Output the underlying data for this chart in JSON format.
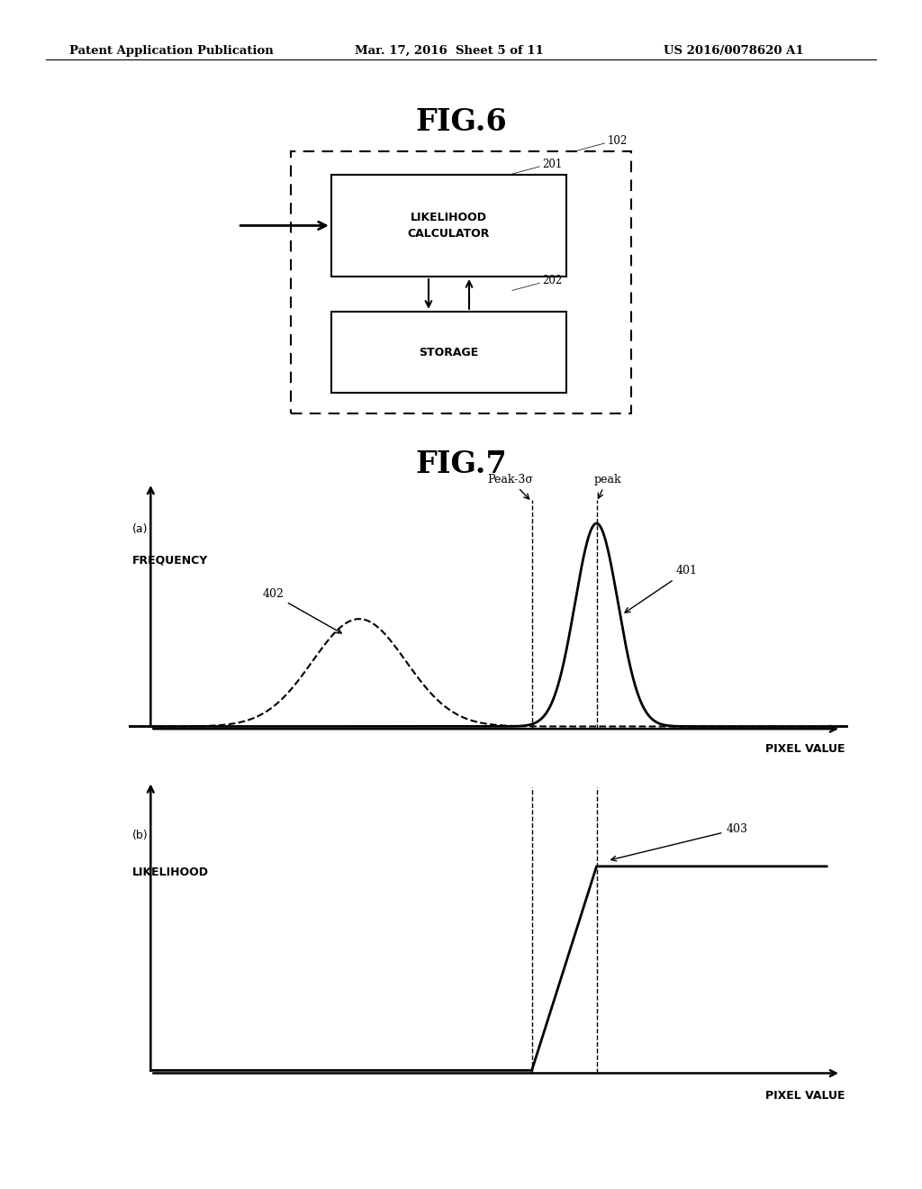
{
  "header_left": "Patent Application Publication",
  "header_mid": "Mar. 17, 2016  Sheet 5 of 11",
  "header_right": "US 2016/0078620 A1",
  "fig6_title": "FIG.6",
  "fig7_title": "FIG.7",
  "fig6_box1_text": "LIKELIHOOD\nCALCULATOR",
  "fig6_box2_text": "STORAGE",
  "fig7a_ylabel_line1": "(a)",
  "fig7a_ylabel_line2": "FREQUENCY",
  "fig7a_xlabel": "PIXEL VALUE",
  "fig7b_ylabel_line1": "(b)",
  "fig7b_ylabel_line2": "LIKELIHOOD",
  "fig7b_xlabel": "PIXEL VALUE",
  "label_402": "402",
  "label_401": "401",
  "label_403": "403",
  "label_peak3s": "Peak-3σ",
  "label_peak": "peak",
  "label_102": "。102",
  "label_201": "。201",
  "label_202": "。202",
  "bg_color": "#ffffff",
  "mu1": 3.2,
  "sig1": 0.65,
  "amp1": 0.45,
  "mu2": 6.5,
  "sig2": 0.3,
  "amp2": 0.85
}
